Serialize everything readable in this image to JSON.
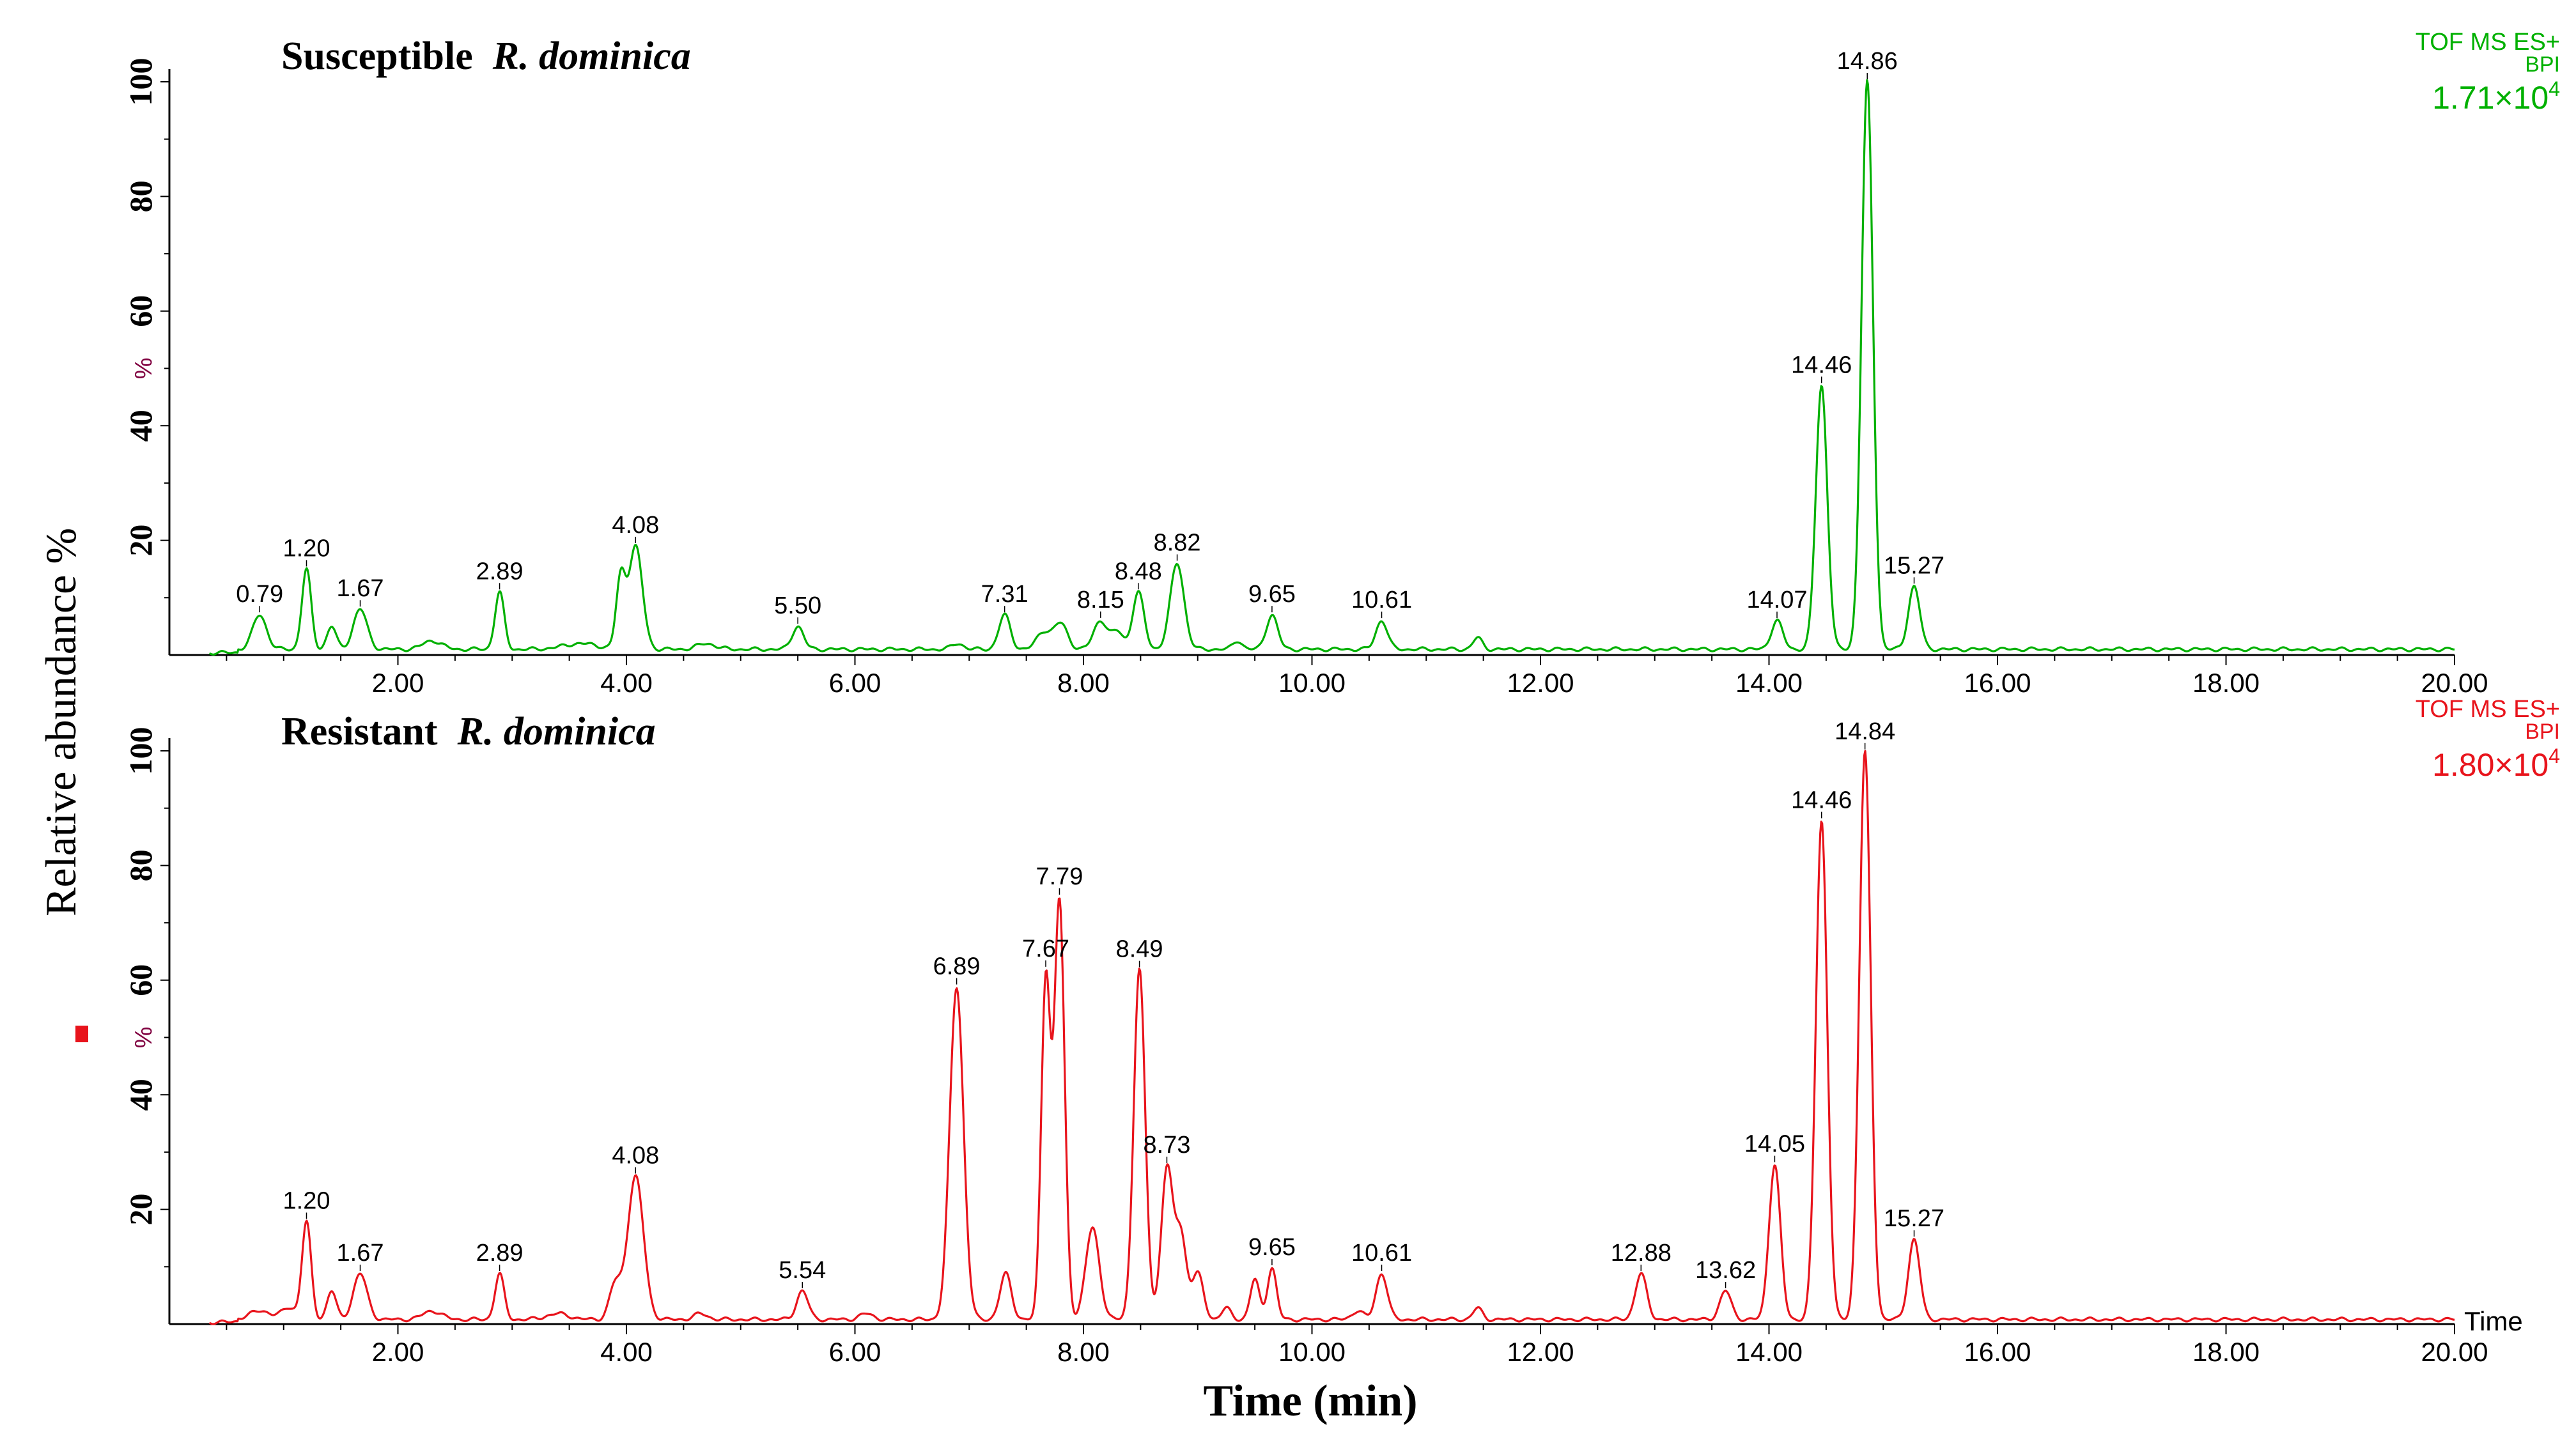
{
  "figure": {
    "y_axis_label": "Relative abundance %",
    "x_axis_label": "Time (min)",
    "time_label": "Time"
  },
  "chart_data": [
    {
      "type": "line",
      "title_prefix": "Susceptible",
      "title_species": "R. dominica",
      "instrument": "TOF MS ES+",
      "mode": "BPI",
      "intensity": "1.71×10",
      "intensity_exp": "4",
      "color": "#00b000",
      "xlim": [
        0,
        20
      ],
      "ylim": [
        0,
        100
      ],
      "x_ticks": [
        "2.00",
        "4.00",
        "6.00",
        "8.00",
        "10.00",
        "12.00",
        "14.00",
        "16.00",
        "18.00",
        "20.00"
      ],
      "y_ticks": [
        "20",
        "40",
        "60",
        "80",
        "100"
      ],
      "y_unit_tick": "%",
      "baseline": 1.0,
      "peaks": [
        {
          "rt": 0.79,
          "h": 6,
          "w": 0.06,
          "label": "0.79"
        },
        {
          "rt": 1.2,
          "h": 14,
          "w": 0.04,
          "label": "1.20"
        },
        {
          "rt": 1.42,
          "h": 4,
          "w": 0.04,
          "label": ""
        },
        {
          "rt": 1.67,
          "h": 7,
          "w": 0.06,
          "label": "1.67"
        },
        {
          "rt": 2.3,
          "h": 1.5,
          "w": 0.08,
          "label": ""
        },
        {
          "rt": 2.89,
          "h": 10,
          "w": 0.04,
          "label": "2.89"
        },
        {
          "rt": 3.6,
          "h": 1,
          "w": 0.15,
          "label": ""
        },
        {
          "rt": 3.95,
          "h": 12,
          "w": 0.04,
          "label": ""
        },
        {
          "rt": 4.08,
          "h": 18,
          "w": 0.06,
          "label": "4.08"
        },
        {
          "rt": 4.7,
          "h": 1,
          "w": 0.08,
          "label": ""
        },
        {
          "rt": 5.5,
          "h": 4,
          "w": 0.05,
          "label": "5.50"
        },
        {
          "rt": 6.9,
          "h": 1,
          "w": 0.05,
          "label": ""
        },
        {
          "rt": 7.31,
          "h": 6,
          "w": 0.05,
          "label": "7.31"
        },
        {
          "rt": 7.65,
          "h": 3,
          "w": 0.06,
          "label": ""
        },
        {
          "rt": 7.8,
          "h": 4.5,
          "w": 0.06,
          "label": ""
        },
        {
          "rt": 8.15,
          "h": 5,
          "w": 0.06,
          "label": "8.15"
        },
        {
          "rt": 8.3,
          "h": 3,
          "w": 0.05,
          "label": ""
        },
        {
          "rt": 8.48,
          "h": 10,
          "w": 0.05,
          "label": "8.48"
        },
        {
          "rt": 8.82,
          "h": 15,
          "w": 0.06,
          "label": "8.82"
        },
        {
          "rt": 9.35,
          "h": 1.5,
          "w": 0.04,
          "label": ""
        },
        {
          "rt": 9.65,
          "h": 6,
          "w": 0.05,
          "label": "9.65"
        },
        {
          "rt": 10.61,
          "h": 5,
          "w": 0.05,
          "label": "10.61"
        },
        {
          "rt": 11.45,
          "h": 2,
          "w": 0.04,
          "label": ""
        },
        {
          "rt": 14.07,
          "h": 5,
          "w": 0.05,
          "label": "14.07"
        },
        {
          "rt": 14.46,
          "h": 46,
          "w": 0.05,
          "label": "14.46"
        },
        {
          "rt": 14.86,
          "h": 99,
          "w": 0.05,
          "label": "14.86"
        },
        {
          "rt": 15.27,
          "h": 11,
          "w": 0.05,
          "label": "15.27"
        }
      ]
    },
    {
      "type": "line",
      "title_prefix": "Resistant",
      "title_species": "R. dominica",
      "instrument": "TOF MS ES+",
      "mode": "BPI",
      "intensity": "1.80×10",
      "intensity_exp": "4",
      "color": "#e8141c",
      "xlim": [
        0,
        20
      ],
      "ylim": [
        0,
        100
      ],
      "x_ticks": [
        "2.00",
        "4.00",
        "6.00",
        "8.00",
        "10.00",
        "12.00",
        "14.00",
        "16.00",
        "18.00",
        "20.00"
      ],
      "y_ticks": [
        "20",
        "40",
        "60",
        "80",
        "100"
      ],
      "y_unit_tick": "%",
      "baseline": 0.8,
      "peaks": [
        {
          "rt": 0.8,
          "h": 1.5,
          "w": 0.1,
          "label": ""
        },
        {
          "rt": 1.05,
          "h": 2,
          "w": 0.06,
          "label": ""
        },
        {
          "rt": 1.2,
          "h": 17,
          "w": 0.04,
          "label": "1.20"
        },
        {
          "rt": 1.42,
          "h": 5,
          "w": 0.04,
          "label": ""
        },
        {
          "rt": 1.67,
          "h": 8,
          "w": 0.06,
          "label": "1.67"
        },
        {
          "rt": 2.3,
          "h": 1.5,
          "w": 0.08,
          "label": ""
        },
        {
          "rt": 2.89,
          "h": 8,
          "w": 0.04,
          "label": "2.89"
        },
        {
          "rt": 3.4,
          "h": 1,
          "w": 0.1,
          "label": ""
        },
        {
          "rt": 3.9,
          "h": 6,
          "w": 0.05,
          "label": ""
        },
        {
          "rt": 4.08,
          "h": 25,
          "w": 0.07,
          "label": "4.08"
        },
        {
          "rt": 4.65,
          "h": 1,
          "w": 0.06,
          "label": ""
        },
        {
          "rt": 5.54,
          "h": 5,
          "w": 0.05,
          "label": "5.54"
        },
        {
          "rt": 6.1,
          "h": 1,
          "w": 0.06,
          "label": ""
        },
        {
          "rt": 6.89,
          "h": 58,
          "w": 0.06,
          "label": "6.89"
        },
        {
          "rt": 7.32,
          "h": 8,
          "w": 0.05,
          "label": ""
        },
        {
          "rt": 7.67,
          "h": 59,
          "w": 0.04,
          "label": "7.67"
        },
        {
          "rt": 7.79,
          "h": 73,
          "w": 0.045,
          "label": "7.79"
        },
        {
          "rt": 8.08,
          "h": 16,
          "w": 0.06,
          "label": ""
        },
        {
          "rt": 8.49,
          "h": 61,
          "w": 0.05,
          "label": "8.49"
        },
        {
          "rt": 8.73,
          "h": 26,
          "w": 0.05,
          "label": "8.73"
        },
        {
          "rt": 8.85,
          "h": 15,
          "w": 0.05,
          "label": ""
        },
        {
          "rt": 9.0,
          "h": 8,
          "w": 0.05,
          "label": ""
        },
        {
          "rt": 9.25,
          "h": 2,
          "w": 0.04,
          "label": ""
        },
        {
          "rt": 9.5,
          "h": 7,
          "w": 0.04,
          "label": ""
        },
        {
          "rt": 9.65,
          "h": 9,
          "w": 0.04,
          "label": "9.65"
        },
        {
          "rt": 10.4,
          "h": 1.5,
          "w": 0.05,
          "label": ""
        },
        {
          "rt": 10.61,
          "h": 8,
          "w": 0.05,
          "label": "10.61"
        },
        {
          "rt": 11.45,
          "h": 2,
          "w": 0.04,
          "label": ""
        },
        {
          "rt": 12.88,
          "h": 8,
          "w": 0.05,
          "label": "12.88"
        },
        {
          "rt": 13.62,
          "h": 5,
          "w": 0.05,
          "label": "13.62"
        },
        {
          "rt": 14.05,
          "h": 27,
          "w": 0.05,
          "label": "14.05"
        },
        {
          "rt": 14.46,
          "h": 87,
          "w": 0.05,
          "label": "14.46"
        },
        {
          "rt": 14.84,
          "h": 99,
          "w": 0.05,
          "label": "14.84"
        },
        {
          "rt": 15.27,
          "h": 14,
          "w": 0.05,
          "label": "15.27"
        }
      ]
    }
  ]
}
